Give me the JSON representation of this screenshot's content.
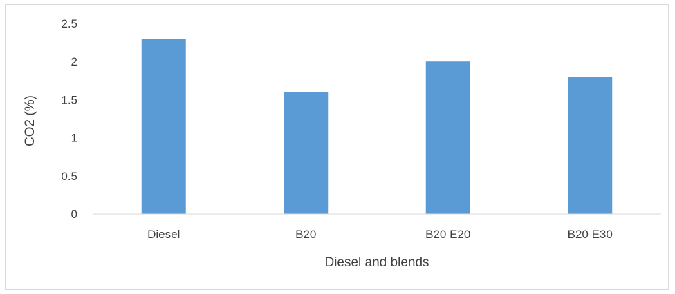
{
  "chart_data": {
    "type": "bar",
    "title": "",
    "xlabel": "Diesel and blends",
    "ylabel": "CO2 (%)",
    "categories": [
      "Diesel",
      "B20",
      "B20 E20",
      "B20 E30"
    ],
    "values": [
      2.3,
      1.6,
      2.0,
      1.8
    ],
    "ylim": [
      0,
      2.5
    ],
    "yticks": [
      "0",
      "0.5",
      "1",
      "1.5",
      "2",
      "2.5"
    ],
    "grid": false,
    "legend": "none",
    "bar_color": "#5b9bd5",
    "axis_color": "#d9d9d9",
    "text_color": "#404040"
  }
}
